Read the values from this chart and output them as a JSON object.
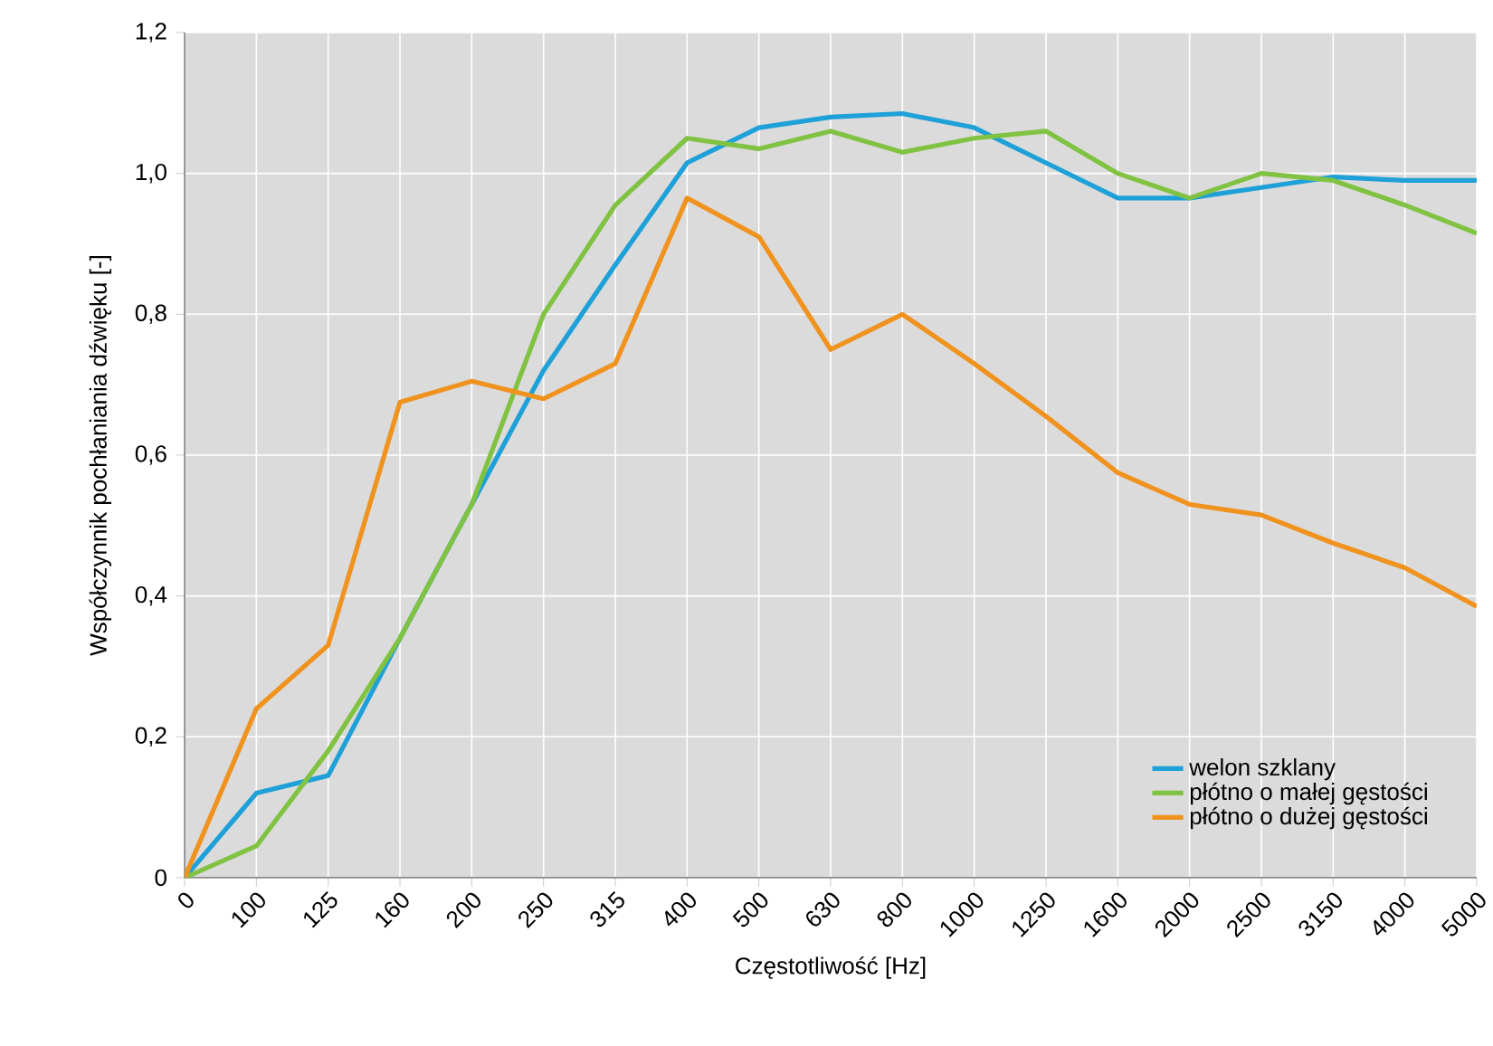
{
  "chart_data": {
    "type": "line",
    "xlabel": "Częstotliwość [Hz]",
    "ylabel": "Współczynnik pochłaniania dźwięku [-]",
    "categories": [
      "0",
      "100",
      "125",
      "160",
      "200",
      "250",
      "315",
      "400",
      "500",
      "630",
      "800",
      "1000",
      "1250",
      "1600",
      "2000",
      "2500",
      "3150",
      "4000",
      "5000"
    ],
    "series": [
      {
        "name": "welon szklany",
        "color": "#1ea0d8",
        "values": [
          0,
          0.12,
          0.145,
          0.34,
          0.53,
          0.72,
          0.87,
          1.015,
          1.065,
          1.08,
          1.085,
          1.065,
          1.015,
          0.965,
          0.965,
          0.98,
          0.995,
          0.99,
          0.99
        ]
      },
      {
        "name": "płótno o małej gęstości",
        "color": "#80c241",
        "values": [
          0,
          0.045,
          0.18,
          0.34,
          0.53,
          0.8,
          0.955,
          1.05,
          1.035,
          1.06,
          1.03,
          1.05,
          1.06,
          1.0,
          0.965,
          1.0,
          0.99,
          0.955,
          0.915
        ]
      },
      {
        "name": "płótno o dużej gęstości",
        "color": "#f0921e",
        "values": [
          0,
          0.24,
          0.33,
          0.675,
          0.705,
          0.68,
          0.73,
          0.965,
          0.91,
          0.75,
          0.8,
          0.73,
          0.655,
          0.575,
          0.53,
          0.515,
          0.475,
          0.44,
          0.385
        ]
      }
    ],
    "ylim": [
      0,
      1.2
    ],
    "yticks": [
      {
        "value": 0,
        "label": "0"
      },
      {
        "value": 0.2,
        "label": "0,2"
      },
      {
        "value": 0.4,
        "label": "0,4"
      },
      {
        "value": 0.6,
        "label": "0,6"
      },
      {
        "value": 0.8,
        "label": "0,8"
      },
      {
        "value": 1.0,
        "label": "1,0"
      },
      {
        "value": 1.2,
        "label": "1,2"
      }
    ],
    "grid": true,
    "legend": "bottom right",
    "marker": "none",
    "line_style": "solid"
  }
}
